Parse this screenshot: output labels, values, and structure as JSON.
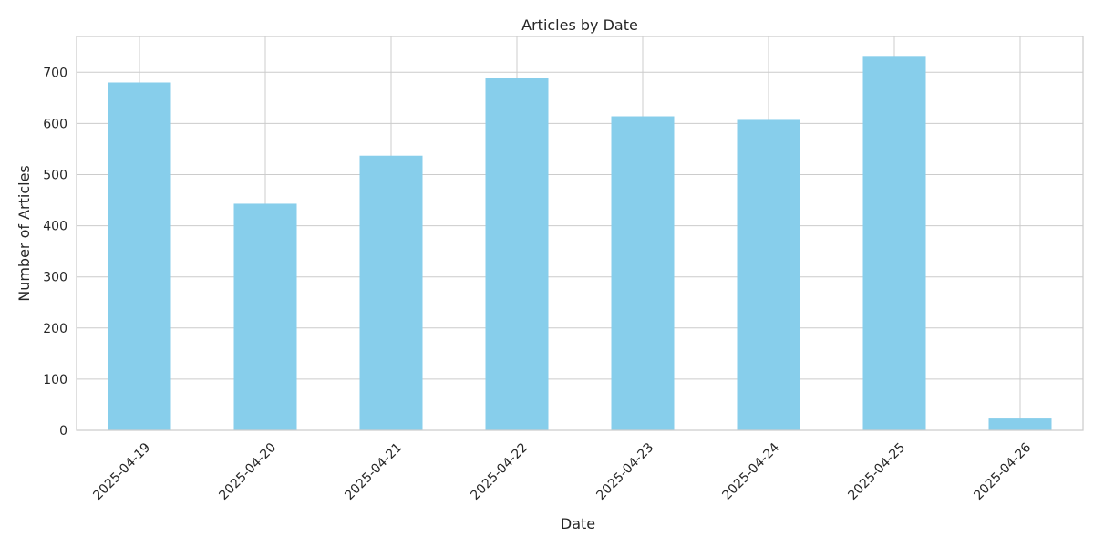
{
  "chart_data": {
    "type": "bar",
    "title": "Articles by Date",
    "xlabel": "Date",
    "ylabel": "Number of Articles",
    "categories": [
      "2025-04-19",
      "2025-04-20",
      "2025-04-21",
      "2025-04-22",
      "2025-04-23",
      "2025-04-24",
      "2025-04-25",
      "2025-04-26"
    ],
    "values": [
      680,
      443,
      537,
      688,
      614,
      607,
      732,
      23
    ],
    "ylim": [
      0,
      770
    ],
    "yticks": [
      0,
      100,
      200,
      300,
      400,
      500,
      600,
      700
    ],
    "bar_color": "#87CEEB",
    "grid": true,
    "legend": "none",
    "xtick_rotation": 45
  }
}
